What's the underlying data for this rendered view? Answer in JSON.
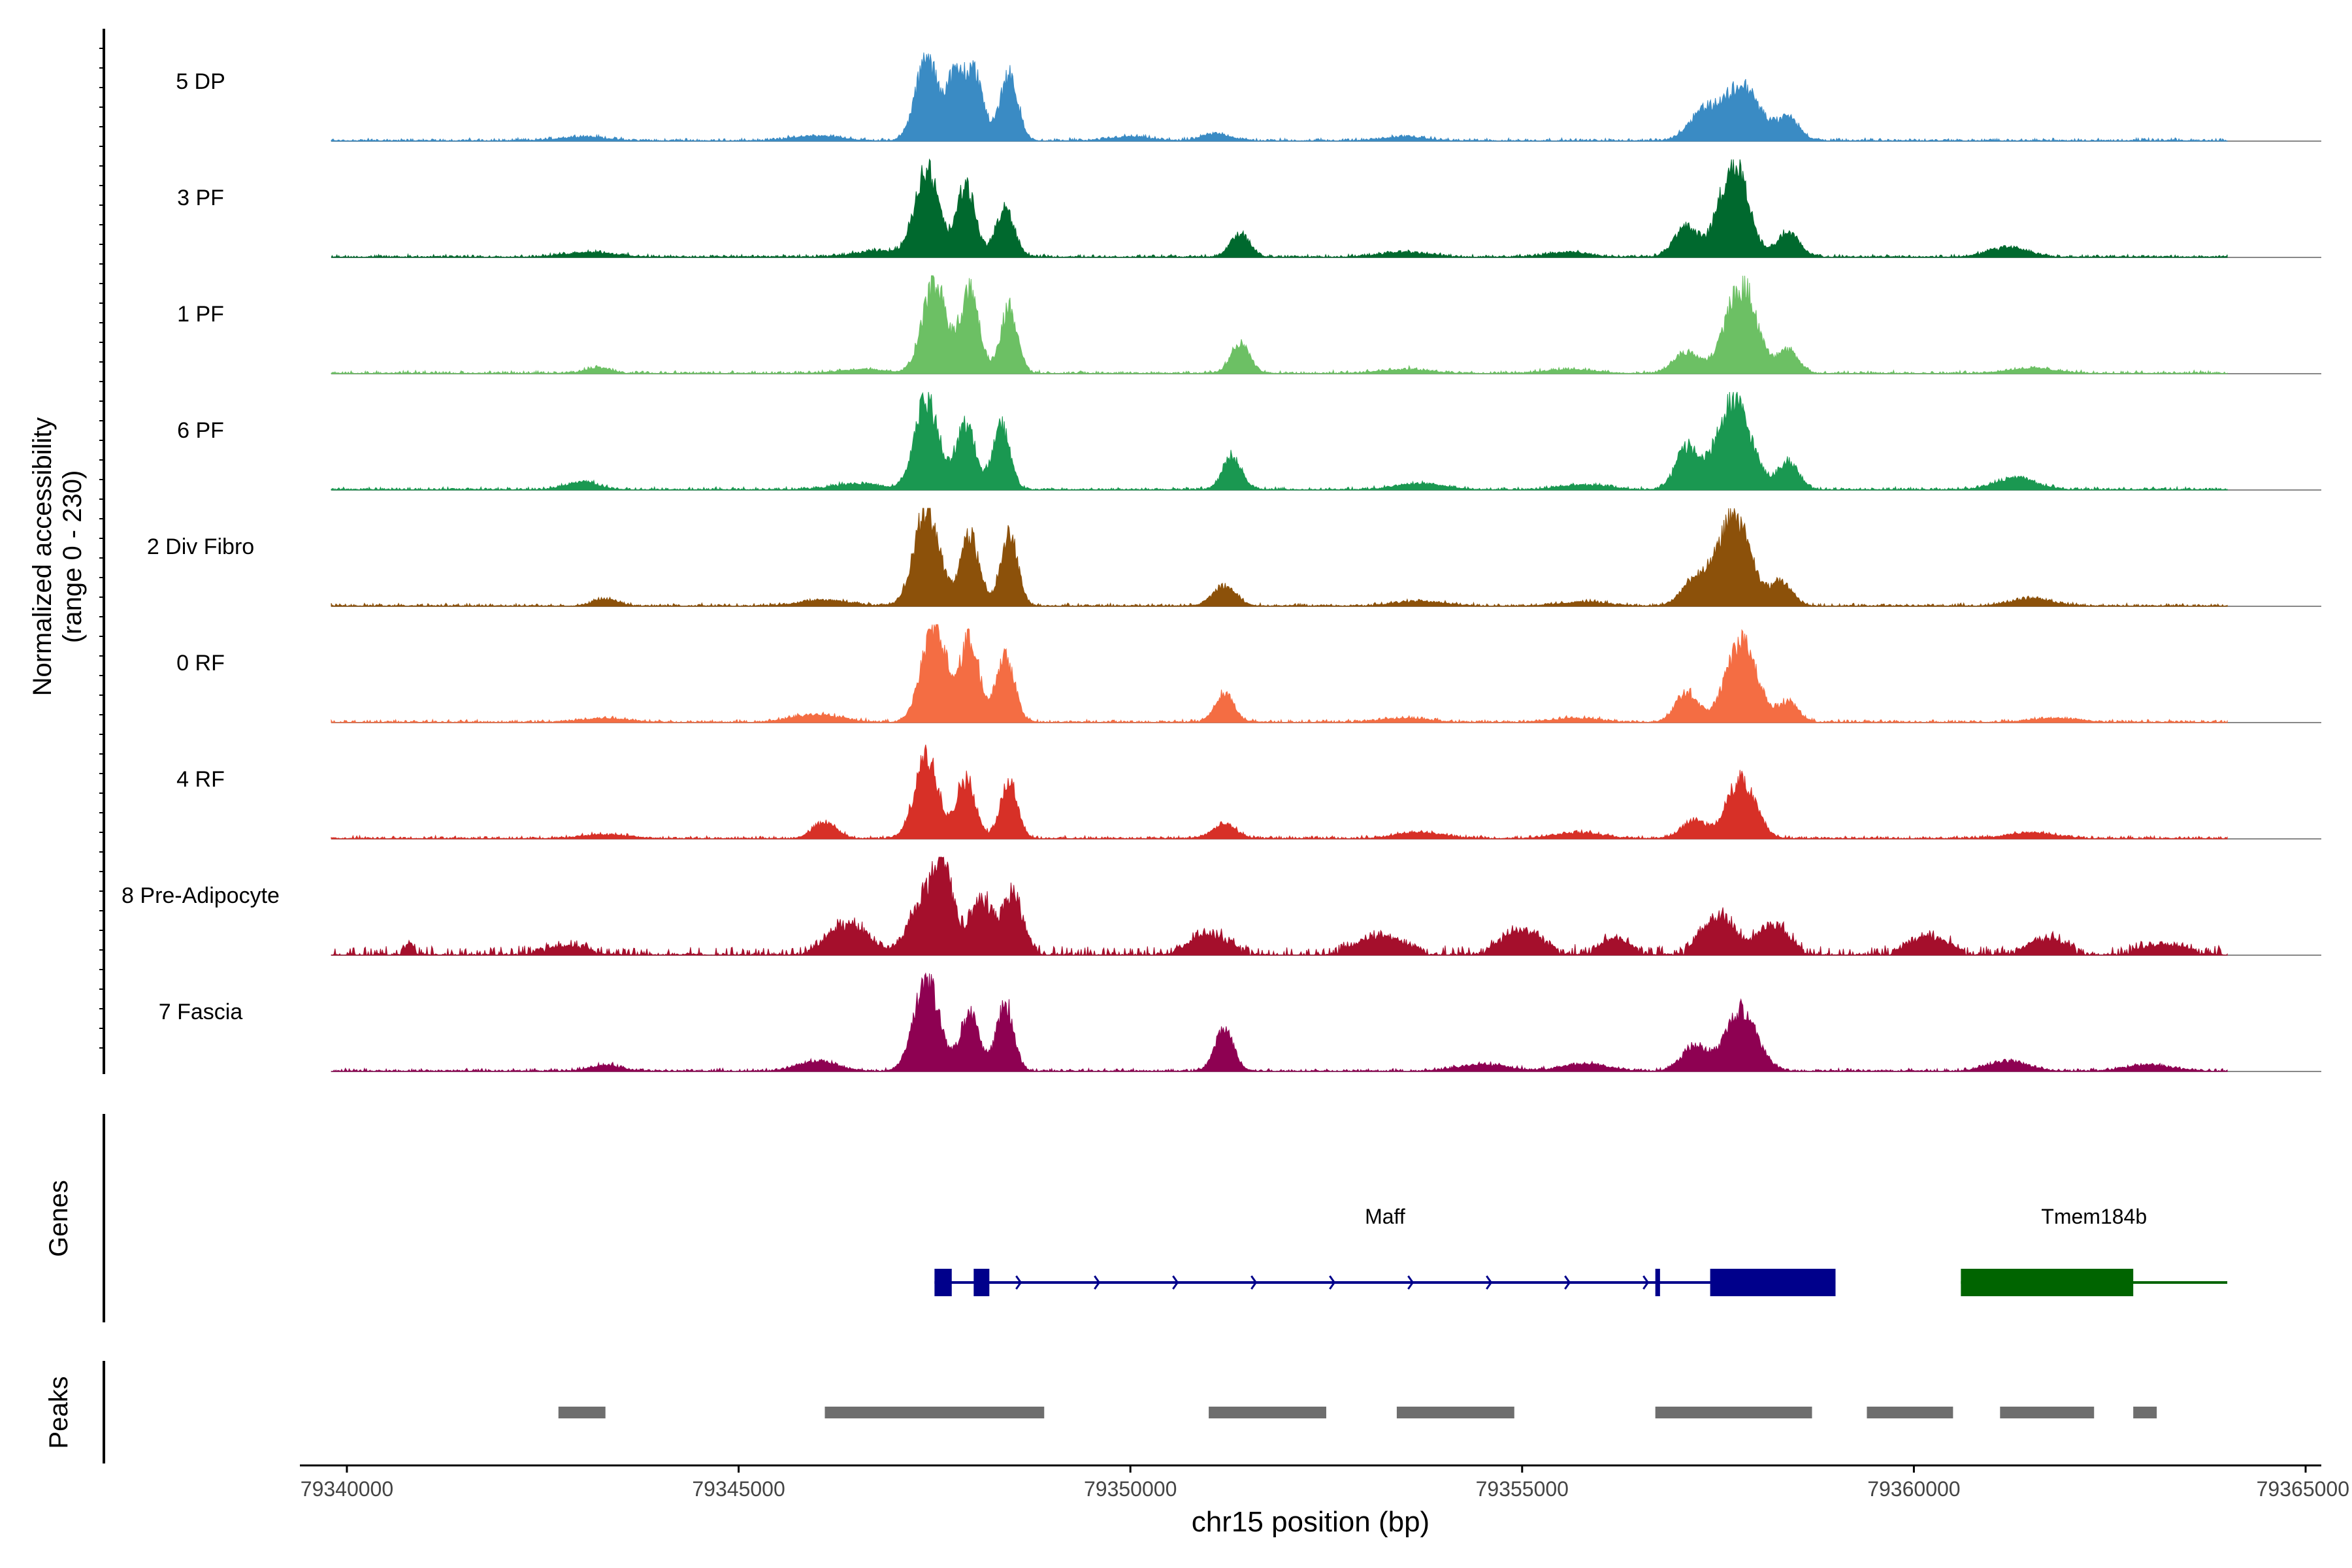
{
  "chart_data": {
    "type": "area",
    "title": "",
    "ylabel_line1": "Normalized accessibility",
    "ylabel_line2": "(range 0 - 230)",
    "xlabel": "chr15 position (bp)",
    "xlim": [
      79339400,
      79365200
    ],
    "x_ticks": [
      "79340000",
      "79345000",
      "79350000",
      "79355000",
      "79360000",
      "79365000"
    ],
    "x_tick_values": [
      79340000,
      79345000,
      79350000,
      79355000,
      79360000,
      79365000
    ],
    "track_labels": {
      "genes": "Genes",
      "peaks": "Peaks"
    },
    "signal_range": [
      79339800,
      79364000
    ],
    "series": [
      {
        "name": "5 DP",
        "color": "#3A8BC4",
        "peaks": [
          [
            79347400,
            0.82,
            140
          ],
          [
            79347750,
            0.58,
            110
          ],
          [
            79348000,
            0.68,
            120
          ],
          [
            79348450,
            0.68,
            110
          ],
          [
            79357300,
            0.28,
            180
          ],
          [
            79357800,
            0.55,
            230
          ],
          [
            79358400,
            0.22,
            140
          ],
          [
            79351100,
            0.07,
            180
          ],
          [
            79343000,
            0.04,
            300
          ],
          [
            79346000,
            0.05,
            300
          ],
          [
            79350000,
            0.04,
            250
          ],
          [
            79353500,
            0.04,
            250
          ]
        ]
      },
      {
        "name": "3 PF",
        "color": "#00692E",
        "peaks": [
          [
            79347400,
            0.88,
            150
          ],
          [
            79347900,
            0.7,
            120
          ],
          [
            79348400,
            0.48,
            120
          ],
          [
            79351400,
            0.24,
            120
          ],
          [
            79357100,
            0.3,
            160
          ],
          [
            79357700,
            0.95,
            180
          ],
          [
            79358400,
            0.26,
            140
          ],
          [
            79343100,
            0.05,
            300
          ],
          [
            79361200,
            0.1,
            250
          ],
          [
            79346800,
            0.06,
            300
          ],
          [
            79353500,
            0.05,
            300
          ],
          [
            79355600,
            0.05,
            250
          ]
        ]
      },
      {
        "name": "1 PF",
        "color": "#6CC064",
        "peaks": [
          [
            79347500,
            0.92,
            150
          ],
          [
            79347950,
            0.82,
            120
          ],
          [
            79348450,
            0.66,
            110
          ],
          [
            79351400,
            0.3,
            120
          ],
          [
            79357100,
            0.22,
            160
          ],
          [
            79357800,
            0.88,
            200
          ],
          [
            79358400,
            0.22,
            130
          ],
          [
            79343200,
            0.06,
            150
          ],
          [
            79361500,
            0.05,
            300
          ],
          [
            79353500,
            0.04,
            300
          ],
          [
            79346600,
            0.04,
            300
          ],
          [
            79355600,
            0.04,
            300
          ]
        ]
      },
      {
        "name": "6 PF",
        "color": "#1A9851",
        "peaks": [
          [
            79347400,
            0.92,
            150
          ],
          [
            79347900,
            0.67,
            120
          ],
          [
            79348350,
            0.66,
            110
          ],
          [
            79351300,
            0.33,
            120
          ],
          [
            79357100,
            0.42,
            140
          ],
          [
            79357700,
            0.88,
            220
          ],
          [
            79358400,
            0.28,
            130
          ],
          [
            79343000,
            0.08,
            200
          ],
          [
            79361300,
            0.12,
            250
          ],
          [
            79346500,
            0.06,
            300
          ],
          [
            79353700,
            0.06,
            300
          ],
          [
            79355800,
            0.05,
            300
          ]
        ]
      },
      {
        "name": "2 Div Fibro",
        "color": "#8C510A",
        "peaks": [
          [
            79347400,
            0.98,
            160
          ],
          [
            79347950,
            0.7,
            120
          ],
          [
            79348450,
            0.72,
            110
          ],
          [
            79351200,
            0.2,
            150
          ],
          [
            79357200,
            0.26,
            160
          ],
          [
            79357700,
            0.92,
            200
          ],
          [
            79358300,
            0.24,
            140
          ],
          [
            79343300,
            0.07,
            150
          ],
          [
            79361500,
            0.08,
            250
          ],
          [
            79346100,
            0.06,
            300
          ],
          [
            79353700,
            0.05,
            300
          ],
          [
            79355800,
            0.04,
            300
          ]
        ]
      },
      {
        "name": "0 RF",
        "color": "#F46D43",
        "peaks": [
          [
            79347500,
            0.98,
            160
          ],
          [
            79347950,
            0.82,
            120
          ],
          [
            79348400,
            0.68,
            120
          ],
          [
            79351200,
            0.3,
            120
          ],
          [
            79357100,
            0.3,
            140
          ],
          [
            79357800,
            0.8,
            200
          ],
          [
            79358400,
            0.2,
            130
          ],
          [
            79346000,
            0.08,
            300
          ],
          [
            79343300,
            0.04,
            300
          ],
          [
            79361800,
            0.04,
            300
          ],
          [
            79353500,
            0.04,
            300
          ],
          [
            79355700,
            0.04,
            300
          ]
        ]
      },
      {
        "name": "4 RF",
        "color": "#D73027",
        "peaks": [
          [
            79347400,
            0.82,
            150
          ],
          [
            79347900,
            0.6,
            120
          ],
          [
            79348450,
            0.58,
            110
          ],
          [
            79346100,
            0.16,
            150
          ],
          [
            79351200,
            0.14,
            150
          ],
          [
            79357200,
            0.18,
            160
          ],
          [
            79357800,
            0.6,
            180
          ],
          [
            79353700,
            0.06,
            300
          ],
          [
            79355700,
            0.06,
            300
          ],
          [
            79361500,
            0.06,
            300
          ],
          [
            79343300,
            0.04,
            300
          ]
        ]
      },
      {
        "name": "8 Pre-Adipocyte",
        "color": "#A50F2C",
        "noisy": true,
        "peaks": [
          [
            79347600,
            0.92,
            140
          ],
          [
            79347300,
            0.45,
            150
          ],
          [
            79348100,
            0.55,
            140
          ],
          [
            79348500,
            0.6,
            130
          ],
          [
            79346400,
            0.3,
            250
          ],
          [
            79351000,
            0.2,
            250
          ],
          [
            79357500,
            0.4,
            200
          ],
          [
            79358200,
            0.3,
            200
          ],
          [
            79355000,
            0.24,
            250
          ],
          [
            79353200,
            0.18,
            300
          ],
          [
            79360200,
            0.18,
            250
          ],
          [
            79361700,
            0.15,
            250
          ],
          [
            79363200,
            0.1,
            300
          ],
          [
            79340800,
            0.1,
            60
          ],
          [
            79342800,
            0.08,
            300
          ],
          [
            79356200,
            0.15,
            200
          ]
        ]
      },
      {
        "name": "7 Fascia",
        "color": "#8E0152",
        "peaks": [
          [
            79347400,
            0.92,
            160
          ],
          [
            79347950,
            0.58,
            120
          ],
          [
            79348400,
            0.68,
            110
          ],
          [
            79351200,
            0.42,
            120
          ],
          [
            79357200,
            0.26,
            160
          ],
          [
            79357800,
            0.62,
            200
          ],
          [
            79346000,
            0.1,
            250
          ],
          [
            79343300,
            0.06,
            200
          ],
          [
            79361200,
            0.1,
            250
          ],
          [
            79354500,
            0.07,
            300
          ],
          [
            79355800,
            0.07,
            300
          ],
          [
            79363000,
            0.06,
            300
          ]
        ]
      }
    ],
    "genes": [
      {
        "name": "Maff",
        "color": "#00008B",
        "strand": "+",
        "start": 79347500,
        "end": 79359000,
        "exons": [
          [
            79347500,
            79347720
          ],
          [
            79348000,
            79348200
          ],
          [
            79356700,
            79356760
          ],
          [
            79357400,
            79359000
          ]
        ]
      },
      {
        "name": "Tmem184b",
        "color": "#006400",
        "strand": "-",
        "start": 79360600,
        "end": 79364000,
        "exons": [
          [
            79360600,
            79362800
          ]
        ]
      }
    ],
    "peak_regions": [
      [
        79342700,
        79343300
      ],
      [
        79346100,
        79348900
      ],
      [
        79351000,
        79352500
      ],
      [
        79353400,
        79354900
      ],
      [
        79356700,
        79358700
      ],
      [
        79359400,
        79360500
      ],
      [
        79361100,
        79362300
      ],
      [
        79362800,
        79363100
      ]
    ]
  }
}
